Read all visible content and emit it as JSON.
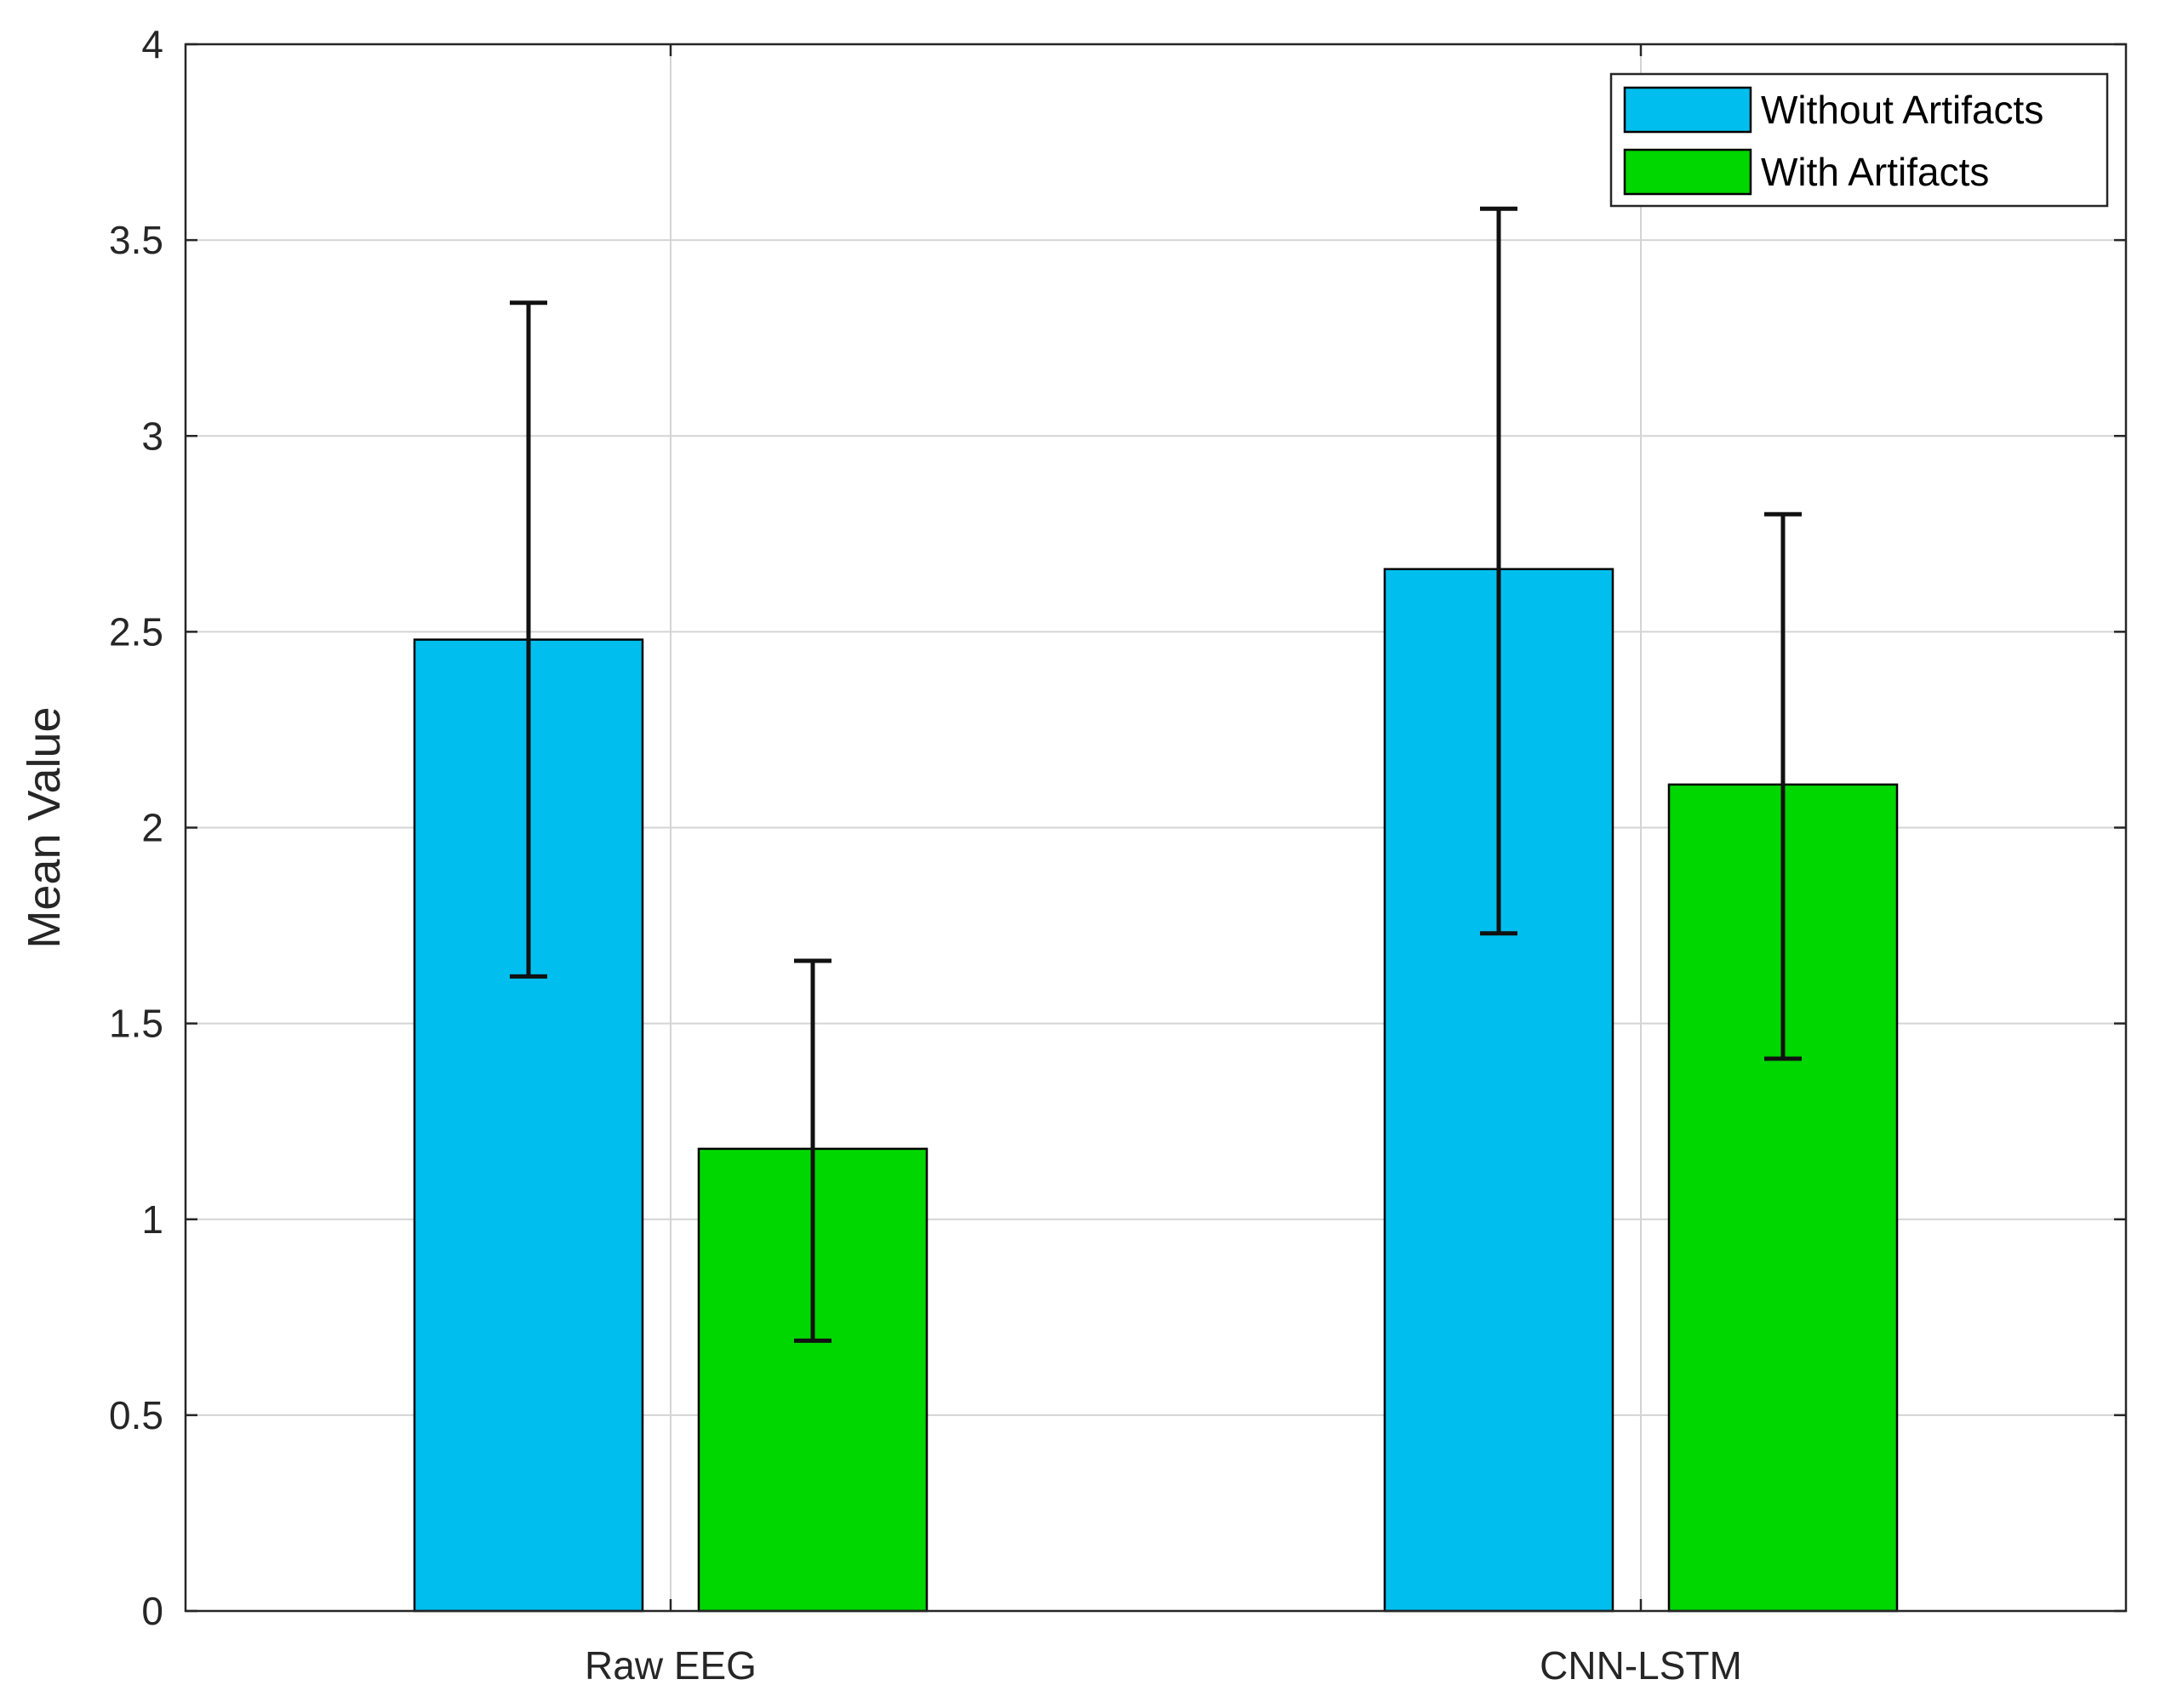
{
  "chart_data": {
    "type": "bar",
    "title": "",
    "xlabel": "",
    "ylabel": "Mean Value",
    "ylim": [
      0,
      4
    ],
    "yticks": [
      0,
      0.5,
      1,
      1.5,
      2,
      2.5,
      3,
      3.5,
      4
    ],
    "ytick_labels": [
      "0",
      "0.5",
      "1",
      "1.5",
      "2",
      "2.5",
      "3",
      "3.5",
      "4"
    ],
    "categories": [
      "Raw EEG",
      "CNN-LSTM"
    ],
    "grid": true,
    "legend_position": "top-right",
    "series": [
      {
        "name": "Without Artifacts",
        "color": "#00BFEF",
        "values": [
          2.48,
          2.66
        ],
        "error_lower": [
          1.62,
          1.73
        ],
        "error_upper": [
          3.34,
          3.58
        ]
      },
      {
        "name": "With Artifacts",
        "color": "#00D600",
        "values": [
          1.18,
          2.11
        ],
        "error_lower": [
          0.69,
          1.41
        ],
        "error_upper": [
          1.66,
          2.8
        ]
      }
    ]
  }
}
